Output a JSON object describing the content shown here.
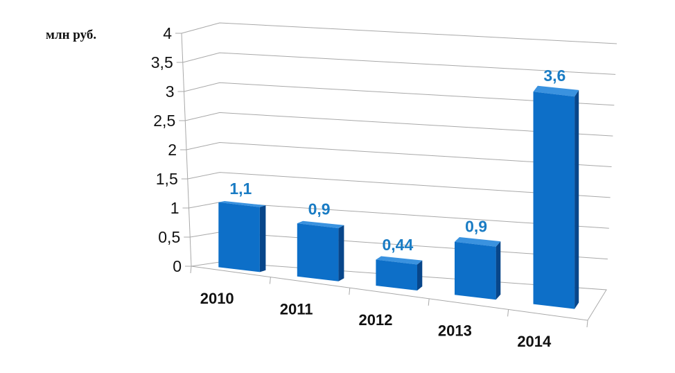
{
  "chart_data": {
    "type": "bar",
    "unit_label": "млн руб.",
    "categories": [
      "2010",
      "2011",
      "2012",
      "2013",
      "2014"
    ],
    "values": [
      1.1,
      0.9,
      0.44,
      0.9,
      3.6
    ],
    "data_labels": [
      "1,1",
      "0,9",
      "0,44",
      "0,9",
      "3,6"
    ],
    "ylim": [
      0,
      4
    ],
    "y_ticks": [
      "0",
      "0,5",
      "1",
      "1,5",
      "2",
      "2,5",
      "3",
      "3,5",
      "4"
    ],
    "grid": true,
    "colors": {
      "bar_front": "#0D6FC8",
      "bar_top": "#3A92DF",
      "bar_side": "#08468A",
      "data_label": "#1A7CC4",
      "grid": "#A8A8A8",
      "axis_text": "#111111"
    }
  }
}
